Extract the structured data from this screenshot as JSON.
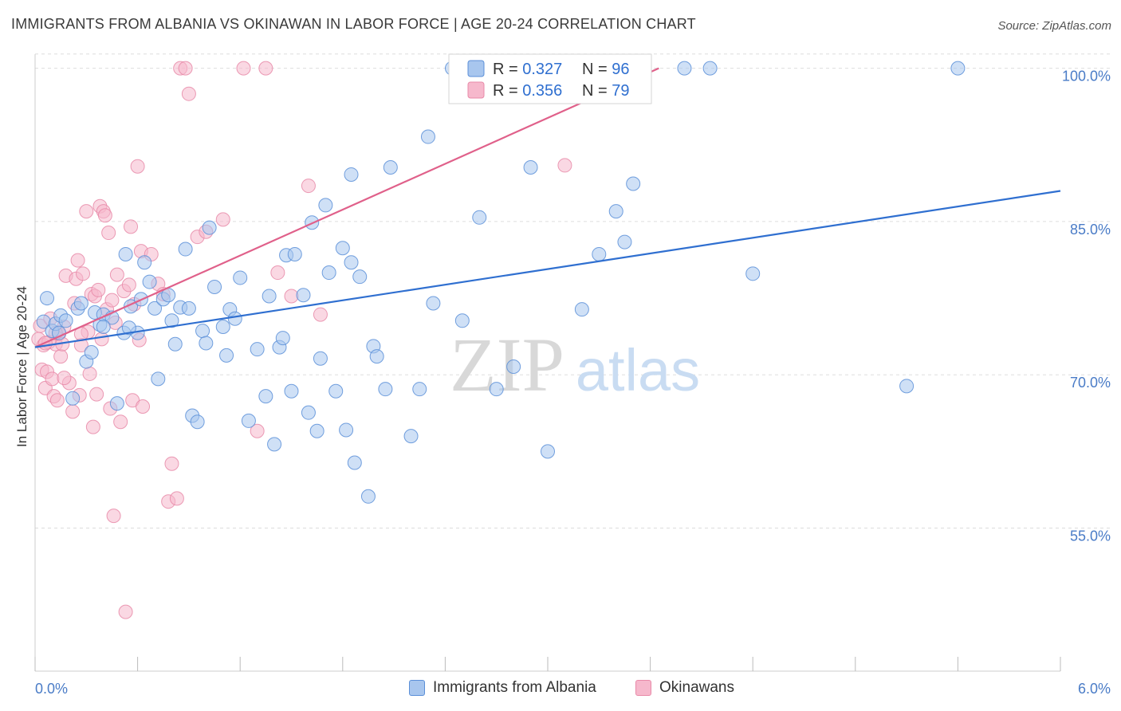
{
  "header": {
    "title": "IMMIGRANTS FROM ALBANIA VS OKINAWAN IN LABOR FORCE | AGE 20-24 CORRELATION CHART",
    "source": "Source: ZipAtlas.com"
  },
  "watermark": {
    "zip": "ZIP",
    "atlas": "atlas"
  },
  "legend_top": {
    "rows": [
      {
        "r_label": "R = ",
        "r_value": "0.327",
        "n_label": "N = ",
        "n_value": "96"
      },
      {
        "r_label": "R = ",
        "r_value": "0.356",
        "n_label": "N = ",
        "n_value": "79"
      }
    ]
  },
  "colors": {
    "blue_fill": "#a8c6ee",
    "blue_stroke": "#5b8fd8",
    "blue_line": "#2f6fd0",
    "pink_fill": "#f6b8cc",
    "pink_stroke": "#e88aa8",
    "pink_line": "#e0608a",
    "tick_text": "#4a7cc7",
    "grid": "#dddddd"
  },
  "chart_data": {
    "type": "scatter",
    "title": "IMMIGRANTS FROM ALBANIA VS OKINAWAN IN LABOR FORCE | AGE 20-24 CORRELATION CHART",
    "xlabel": "",
    "ylabel": "In Labor Force | Age 20-24",
    "xlim": [
      0,
      6
    ],
    "ylim": [
      41,
      102
    ],
    "x_tick_labels": [
      "0.0%",
      "6.0%"
    ],
    "y_ticks": [
      55,
      70,
      85,
      100
    ],
    "y_tick_labels": [
      "55.0%",
      "70.0%",
      "85.0%",
      "100.0%"
    ],
    "grid": true,
    "legend_position": "top-center",
    "series": [
      {
        "name": "Immigrants from Albania",
        "color": "#a8c6ee",
        "r": 0.327,
        "n": 96,
        "trend": {
          "x0": 0.0,
          "y0": 72.7,
          "x1": 6.0,
          "y1": 88.0
        },
        "points": [
          [
            0.05,
            75.2
          ],
          [
            0.07,
            77.5
          ],
          [
            0.1,
            74.3
          ],
          [
            0.12,
            75.0
          ],
          [
            0.14,
            74.1
          ],
          [
            0.15,
            75.8
          ],
          [
            0.18,
            75.3
          ],
          [
            0.22,
            67.7
          ],
          [
            0.25,
            76.5
          ],
          [
            0.27,
            77.0
          ],
          [
            0.3,
            71.3
          ],
          [
            0.33,
            72.2
          ],
          [
            0.35,
            76.1
          ],
          [
            0.38,
            74.9
          ],
          [
            0.4,
            75.9
          ],
          [
            0.45,
            75.6
          ],
          [
            0.48,
            67.2
          ],
          [
            0.52,
            74.1
          ],
          [
            0.53,
            81.8
          ],
          [
            0.56,
            76.7
          ],
          [
            0.6,
            74.1
          ],
          [
            0.62,
            77.4
          ],
          [
            0.64,
            81.0
          ],
          [
            0.67,
            79.1
          ],
          [
            0.7,
            76.5
          ],
          [
            0.72,
            69.6
          ],
          [
            0.75,
            77.4
          ],
          [
            0.78,
            77.8
          ],
          [
            0.8,
            75.3
          ],
          [
            0.82,
            73.0
          ],
          [
            0.85,
            76.6
          ],
          [
            0.88,
            82.3
          ],
          [
            0.9,
            76.5
          ],
          [
            0.92,
            66.0
          ],
          [
            0.95,
            65.4
          ],
          [
            0.98,
            74.3
          ],
          [
            1.0,
            73.1
          ],
          [
            1.02,
            84.4
          ],
          [
            1.05,
            78.6
          ],
          [
            1.1,
            74.7
          ],
          [
            1.12,
            71.9
          ],
          [
            1.14,
            76.4
          ],
          [
            1.17,
            75.5
          ],
          [
            1.2,
            79.5
          ],
          [
            1.25,
            65.5
          ],
          [
            1.3,
            72.5
          ],
          [
            1.35,
            67.9
          ],
          [
            1.37,
            77.7
          ],
          [
            1.4,
            63.2
          ],
          [
            1.43,
            72.7
          ],
          [
            1.45,
            73.6
          ],
          [
            1.47,
            81.7
          ],
          [
            1.5,
            68.4
          ],
          [
            1.52,
            81.8
          ],
          [
            1.57,
            77.8
          ],
          [
            1.6,
            66.3
          ],
          [
            1.62,
            84.9
          ],
          [
            1.65,
            64.5
          ],
          [
            1.67,
            71.6
          ],
          [
            1.7,
            86.6
          ],
          [
            1.72,
            80.0
          ],
          [
            1.76,
            68.4
          ],
          [
            1.8,
            82.4
          ],
          [
            1.82,
            64.6
          ],
          [
            1.85,
            81.0
          ],
          [
            1.87,
            61.4
          ],
          [
            1.9,
            79.6
          ],
          [
            1.95,
            58.1
          ],
          [
            1.98,
            72.8
          ],
          [
            2.0,
            71.8
          ],
          [
            2.05,
            68.6
          ],
          [
            2.08,
            90.3
          ],
          [
            2.2,
            64.0
          ],
          [
            2.25,
            68.6
          ],
          [
            2.3,
            93.3
          ],
          [
            2.33,
            77.0
          ],
          [
            2.44,
            100.0
          ],
          [
            2.5,
            75.3
          ],
          [
            2.6,
            85.4
          ],
          [
            2.7,
            68.6
          ],
          [
            2.8,
            70.8
          ],
          [
            2.9,
            90.3
          ],
          [
            3.0,
            62.5
          ],
          [
            3.2,
            76.4
          ],
          [
            3.3,
            81.8
          ],
          [
            3.4,
            86.0
          ],
          [
            3.45,
            83.0
          ],
          [
            3.5,
            88.7
          ],
          [
            3.8,
            100.0
          ],
          [
            3.95,
            100.0
          ],
          [
            4.2,
            79.9
          ],
          [
            5.1,
            68.9
          ],
          [
            5.4,
            100.0
          ],
          [
            1.85,
            89.6
          ],
          [
            0.55,
            74.6
          ],
          [
            0.4,
            74.7
          ]
        ]
      },
      {
        "name": "Okinawans",
        "color": "#f6b8cc",
        "r": 0.356,
        "n": 79,
        "trend": {
          "x0": 0.0,
          "y0": 72.7,
          "x1": 3.65,
          "y1": 100.0
        },
        "points": [
          [
            0.02,
            73.5
          ],
          [
            0.03,
            74.8
          ],
          [
            0.04,
            70.5
          ],
          [
            0.05,
            72.9
          ],
          [
            0.06,
            68.7
          ],
          [
            0.07,
            70.3
          ],
          [
            0.08,
            73.2
          ],
          [
            0.09,
            75.5
          ],
          [
            0.1,
            69.6
          ],
          [
            0.11,
            67.9
          ],
          [
            0.12,
            73.0
          ],
          [
            0.13,
            67.5
          ],
          [
            0.14,
            74.0
          ],
          [
            0.15,
            71.8
          ],
          [
            0.16,
            73.0
          ],
          [
            0.17,
            74.7
          ],
          [
            0.18,
            79.7
          ],
          [
            0.2,
            69.2
          ],
          [
            0.22,
            66.4
          ],
          [
            0.23,
            77.0
          ],
          [
            0.24,
            79.4
          ],
          [
            0.25,
            81.2
          ],
          [
            0.26,
            68.0
          ],
          [
            0.27,
            72.9
          ],
          [
            0.28,
            79.9
          ],
          [
            0.3,
            86.0
          ],
          [
            0.31,
            74.2
          ],
          [
            0.32,
            70.1
          ],
          [
            0.33,
            77.9
          ],
          [
            0.34,
            64.9
          ],
          [
            0.35,
            77.7
          ],
          [
            0.36,
            68.1
          ],
          [
            0.37,
            78.3
          ],
          [
            0.38,
            86.5
          ],
          [
            0.39,
            73.5
          ],
          [
            0.4,
            86.0
          ],
          [
            0.41,
            85.6
          ],
          [
            0.42,
            76.4
          ],
          [
            0.43,
            83.9
          ],
          [
            0.44,
            66.7
          ],
          [
            0.45,
            77.3
          ],
          [
            0.46,
            56.2
          ],
          [
            0.47,
            75.1
          ],
          [
            0.48,
            79.8
          ],
          [
            0.5,
            65.4
          ],
          [
            0.52,
            78.2
          ],
          [
            0.53,
            46.8
          ],
          [
            0.55,
            78.8
          ],
          [
            0.56,
            84.5
          ],
          [
            0.57,
            67.5
          ],
          [
            0.58,
            76.9
          ],
          [
            0.6,
            90.4
          ],
          [
            0.61,
            73.4
          ],
          [
            0.62,
            82.1
          ],
          [
            0.63,
            66.9
          ],
          [
            0.68,
            81.8
          ],
          [
            0.72,
            78.9
          ],
          [
            0.75,
            77.9
          ],
          [
            0.78,
            57.6
          ],
          [
            0.8,
            61.3
          ],
          [
            0.83,
            57.9
          ],
          [
            0.85,
            100.0
          ],
          [
            0.88,
            100.0
          ],
          [
            0.9,
            97.5
          ],
          [
            0.95,
            83.5
          ],
          [
            1.0,
            84.0
          ],
          [
            1.1,
            85.2
          ],
          [
            1.22,
            100.0
          ],
          [
            1.3,
            64.5
          ],
          [
            1.35,
            100.0
          ],
          [
            1.42,
            80.0
          ],
          [
            1.5,
            77.7
          ],
          [
            1.6,
            88.5
          ],
          [
            1.67,
            75.9
          ],
          [
            3.1,
            90.5
          ],
          [
            0.06,
            73.1
          ],
          [
            0.12,
            74.1
          ],
          [
            0.17,
            69.7
          ],
          [
            0.27,
            74.0
          ]
        ]
      }
    ]
  },
  "bottom_legend": [
    {
      "label": "Immigrants from Albania"
    },
    {
      "label": "Okinawans"
    }
  ]
}
